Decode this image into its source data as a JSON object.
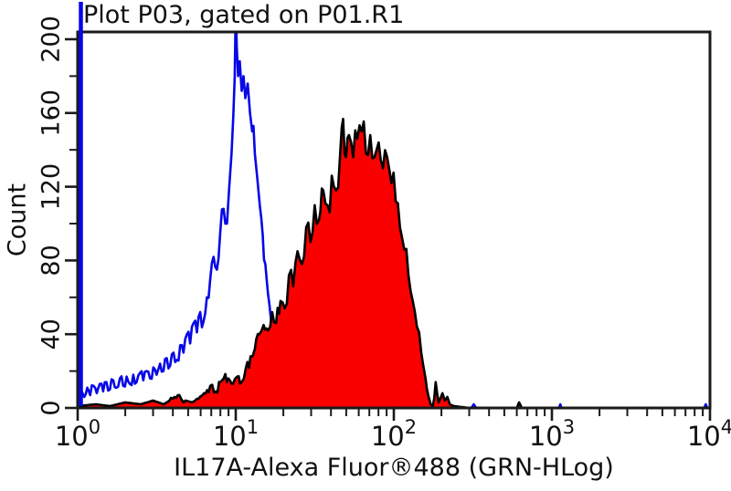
{
  "title": "Plot P03, gated on P01.R1",
  "axes": {
    "y_label": "Count",
    "x_label": "IL17A-Alexa Fluor®488 (GRN-HLog)"
  },
  "colors": {
    "control_line": "#0707e8",
    "sample_fill": "#fb0000",
    "sample_outline": "#000000",
    "frame": "#1a1a1a",
    "background": "#ffffff"
  },
  "chart_data": {
    "type": "area",
    "subtype": "flow-cytometry-histogram-overlay",
    "title": "Plot P03, gated on P01.R1",
    "xlabel": "IL17A-Alexa Fluor®488 (GRN-HLog)",
    "ylabel": "Count",
    "x_scale": "log",
    "xlim": [
      1,
      10000
    ],
    "ylim": [
      0,
      204
    ],
    "grid": false,
    "legend": "none",
    "x_axis": {
      "tick_label_base": "10",
      "decade_exponents": [
        0,
        1,
        2,
        3,
        4
      ],
      "minor_multiples": [
        2,
        3,
        4,
        5,
        6,
        7,
        8,
        9
      ]
    },
    "y_axis": {
      "major_ticks": [
        0,
        40,
        80,
        120,
        160,
        200
      ],
      "minor_ticks": [
        20,
        60,
        100,
        140,
        180
      ]
    },
    "series": [
      {
        "name": "control (open blue histogram)",
        "style": "open",
        "color": "#0707e8",
        "axis_spike": {
          "x": 1.0,
          "note": "off-scale spike at axis, extends above plot frame"
        },
        "points": [
          [
            1.02,
            4
          ],
          [
            1.06,
            9
          ],
          [
            1.1,
            6
          ],
          [
            1.15,
            11
          ],
          [
            1.2,
            7
          ],
          [
            1.26,
            12
          ],
          [
            1.32,
            8
          ],
          [
            1.38,
            13
          ],
          [
            1.45,
            9
          ],
          [
            1.52,
            14
          ],
          [
            1.6,
            10
          ],
          [
            1.68,
            15
          ],
          [
            1.76,
            11
          ],
          [
            1.85,
            16
          ],
          [
            1.94,
            12
          ],
          [
            2.04,
            17
          ],
          [
            2.14,
            13
          ],
          [
            2.25,
            18
          ],
          [
            2.36,
            14
          ],
          [
            2.48,
            19
          ],
          [
            2.6,
            15
          ],
          [
            2.73,
            20
          ],
          [
            2.87,
            16
          ],
          [
            3.01,
            22
          ],
          [
            3.16,
            18
          ],
          [
            3.32,
            24
          ],
          [
            3.49,
            20
          ],
          [
            3.66,
            27
          ],
          [
            3.85,
            23
          ],
          [
            4.04,
            30
          ],
          [
            4.24,
            26
          ],
          [
            4.45,
            34
          ],
          [
            4.67,
            30
          ],
          [
            4.91,
            40
          ],
          [
            5.15,
            35
          ],
          [
            5.41,
            46
          ],
          [
            5.68,
            41
          ],
          [
            5.96,
            52
          ],
          [
            6.26,
            47
          ],
          [
            6.57,
            60
          ],
          [
            6.9,
            70
          ],
          [
            7.24,
            82
          ],
          [
            7.6,
            75
          ],
          [
            7.98,
            95
          ],
          [
            8.38,
            108
          ],
          [
            8.8,
            100
          ],
          [
            9.1,
            120
          ],
          [
            9.4,
            138
          ],
          [
            9.65,
            158
          ],
          [
            9.85,
            180
          ],
          [
            10.0,
            218
          ],
          [
            10.15,
            196
          ],
          [
            10.35,
            180
          ],
          [
            10.6,
            188
          ],
          [
            10.9,
            172
          ],
          [
            11.2,
            180
          ],
          [
            11.5,
            168
          ],
          [
            11.9,
            176
          ],
          [
            12.3,
            160
          ],
          [
            12.7,
            150
          ],
          [
            13.2,
            138
          ],
          [
            13.7,
            124
          ],
          [
            14.2,
            110
          ],
          [
            14.8,
            94
          ],
          [
            15.4,
            78
          ],
          [
            16.0,
            62
          ],
          [
            16.7,
            48
          ],
          [
            17.4,
            35
          ],
          [
            18.1,
            24
          ],
          [
            18.9,
            14
          ],
          [
            19.7,
            8
          ],
          [
            20.6,
            4
          ],
          [
            22,
            2
          ],
          [
            25,
            1
          ],
          [
            60,
            1
          ],
          [
            150,
            0
          ],
          [
            310,
            0
          ],
          [
            320,
            2
          ],
          [
            332,
            0
          ],
          [
            600,
            0
          ],
          [
            615,
            2
          ],
          [
            630,
            0
          ],
          [
            1110,
            0
          ],
          [
            1130,
            2
          ],
          [
            1150,
            0
          ],
          [
            9200,
            0
          ],
          [
            9400,
            2
          ],
          [
            9600,
            0
          ],
          [
            10000,
            0
          ]
        ]
      },
      {
        "name": "IL17A-Alexa Fluor 488 (filled red histogram)",
        "style": "filled",
        "color": "#000000",
        "fill": "#fb0000",
        "points": [
          [
            1.0,
            1
          ],
          [
            1.3,
            2
          ],
          [
            1.6,
            1
          ],
          [
            2.0,
            3
          ],
          [
            2.5,
            2
          ],
          [
            3.0,
            4
          ],
          [
            3.5,
            2
          ],
          [
            4.0,
            5
          ],
          [
            4.4,
            7
          ],
          [
            4.8,
            4
          ],
          [
            5.3,
            3
          ],
          [
            5.8,
            5
          ],
          [
            6.3,
            8
          ],
          [
            6.9,
            12
          ],
          [
            7.5,
            9
          ],
          [
            8.2,
            15
          ],
          [
            9.0,
            16
          ],
          [
            9.6,
            13
          ],
          [
            10.2,
            17
          ],
          [
            10.9,
            14
          ],
          [
            11.6,
            22
          ],
          [
            12.4,
            28
          ],
          [
            13.2,
            32
          ],
          [
            14.1,
            40
          ],
          [
            15.0,
            45
          ],
          [
            16.0,
            42
          ],
          [
            17.0,
            52
          ],
          [
            18.0,
            46
          ],
          [
            19.2,
            58
          ],
          [
            20.4,
            54
          ],
          [
            21.7,
            72
          ],
          [
            23.1,
            66
          ],
          [
            24.6,
            85
          ],
          [
            26.2,
            78
          ],
          [
            27.9,
            98
          ],
          [
            29.7,
            90
          ],
          [
            31.6,
            110
          ],
          [
            33.6,
            102
          ],
          [
            35.8,
            118
          ],
          [
            38.1,
            110
          ],
          [
            40.5,
            126
          ],
          [
            43.1,
            118
          ],
          [
            45.9,
            140
          ],
          [
            46.8,
            152
          ],
          [
            48.8,
            138
          ],
          [
            52.0,
            148
          ],
          [
            55.3,
            136
          ],
          [
            58.8,
            146
          ],
          [
            62.6,
            150
          ],
          [
            66.6,
            138
          ],
          [
            70.9,
            148
          ],
          [
            75.4,
            136
          ],
          [
            80.2,
            144
          ],
          [
            85.3,
            130
          ],
          [
            90.8,
            136
          ],
          [
            96.6,
            122
          ],
          [
            102.8,
            112
          ],
          [
            109.4,
            98
          ],
          [
            116.4,
            86
          ],
          [
            123.8,
            72
          ],
          [
            131.7,
            58
          ],
          [
            140.1,
            44
          ],
          [
            149.1,
            30
          ],
          [
            158.6,
            16
          ],
          [
            165,
            7
          ],
          [
            171,
            2
          ],
          [
            176,
            1
          ],
          [
            180,
            5
          ],
          [
            184,
            14
          ],
          [
            188,
            8
          ],
          [
            192,
            3
          ],
          [
            197,
            5
          ],
          [
            203,
            8
          ],
          [
            210,
            4
          ],
          [
            218,
            6
          ],
          [
            226,
            2
          ],
          [
            240,
            1
          ],
          [
            300,
            0
          ],
          [
            600,
            0
          ],
          [
            620,
            3
          ],
          [
            645,
            0
          ],
          [
            10000,
            0
          ]
        ]
      }
    ]
  }
}
